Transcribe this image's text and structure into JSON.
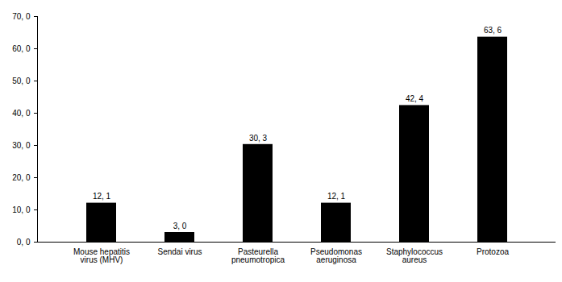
{
  "chart_data": {
    "type": "bar",
    "categories": [
      "Mouse hepatitis virus (MHV)",
      "Sendai virus",
      "Pasteurella pneumotropica",
      "Pseudomonas aeruginosa",
      "Staphylococcus aureus",
      "Protozoa"
    ],
    "values": [
      12.1,
      3.0,
      30.3,
      12.1,
      42.4,
      63.6
    ],
    "value_labels": [
      "12, 1",
      "3, 0",
      "30, 3",
      "12, 1",
      "42, 4",
      "63, 6"
    ],
    "color": "#000000",
    "ylim": [
      0,
      70
    ],
    "yticks": [
      {
        "value": 0,
        "label": "0, 0"
      },
      {
        "value": 10,
        "label": "10, 0"
      },
      {
        "value": 20,
        "label": "20, 0"
      },
      {
        "value": 30,
        "label": "30, 0"
      },
      {
        "value": 40,
        "label": "40, 0"
      },
      {
        "value": 50,
        "label": "50, 0"
      },
      {
        "value": 60,
        "label": "60, 0"
      },
      {
        "value": 70,
        "label": "70, 0"
      }
    ],
    "grid": false,
    "data_labels": true
  }
}
